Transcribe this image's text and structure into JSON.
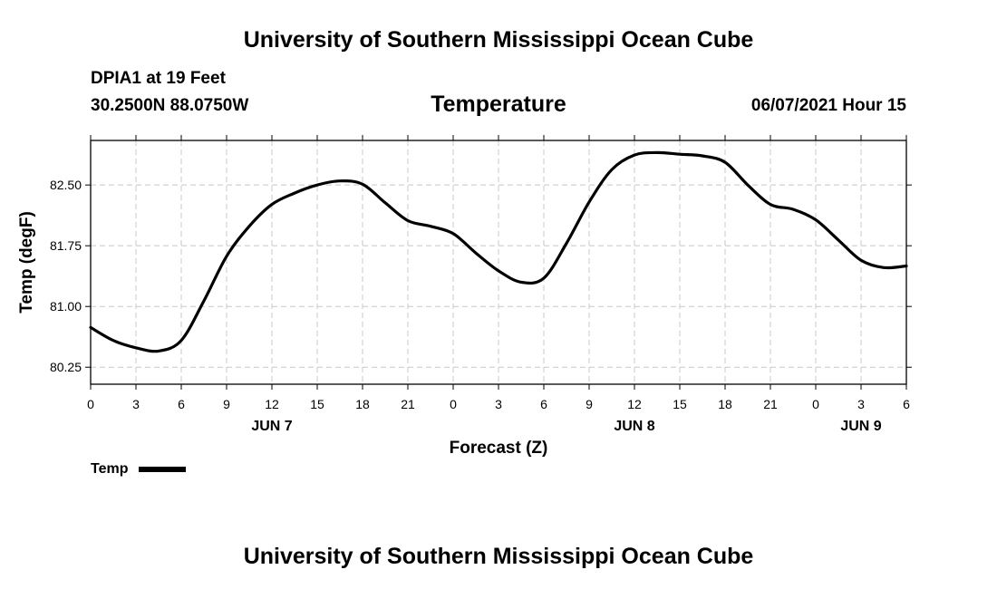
{
  "header": {
    "top_title": "University of Southern Mississippi Ocean Cube",
    "station": "DPIA1 at 19 Feet",
    "coords": "30.2500N  88.0750W",
    "variable": "Temperature",
    "datetime": "06/07/2021 Hour 15"
  },
  "footer": {
    "bottom_title": "University of Southern Mississippi Ocean Cube"
  },
  "legend": {
    "label": "Temp",
    "color": "#000000"
  },
  "chart_data": {
    "type": "line",
    "title": "Temperature",
    "ylabel": "Temp (degF)",
    "xlabel": "Forecast (Z)",
    "ylim": [
      80.04,
      83.05
    ],
    "xlim": [
      0,
      54
    ],
    "grid": true,
    "line_color": "#000000",
    "y_ticks": [
      80.25,
      81.0,
      81.75,
      82.5
    ],
    "y_tick_labels": [
      "80.25",
      "81.00",
      "81.75",
      "82.50"
    ],
    "x_ticks": [
      0,
      3,
      6,
      9,
      12,
      15,
      18,
      21,
      24,
      27,
      30,
      33,
      36,
      39,
      42,
      45,
      48,
      51,
      54
    ],
    "x_tick_labels": [
      "0",
      "3",
      "6",
      "9",
      "12",
      "15",
      "18",
      "21",
      "0",
      "3",
      "6",
      "9",
      "12",
      "15",
      "18",
      "21",
      "0",
      "3",
      "6"
    ],
    "day_labels": [
      {
        "x": 12,
        "label": "JUN 7"
      },
      {
        "x": 36,
        "label": "JUN 8"
      },
      {
        "x": 51,
        "label": "JUN 9"
      }
    ],
    "series": [
      {
        "name": "Temp",
        "x": [
          0,
          1.5,
          3,
          4.5,
          6,
          7.5,
          9,
          10.5,
          12,
          13.5,
          15,
          16.5,
          18,
          19.5,
          21,
          22.5,
          24,
          25.5,
          27,
          28.5,
          30,
          31.5,
          33,
          34.5,
          36,
          37.5,
          39,
          40.5,
          42,
          43.5,
          45,
          46.5,
          48,
          49.5,
          51,
          52.5,
          54
        ],
        "y": [
          80.74,
          80.58,
          80.49,
          80.45,
          80.58,
          81.07,
          81.62,
          81.99,
          82.26,
          82.4,
          82.5,
          82.55,
          82.51,
          82.28,
          82.06,
          81.99,
          81.9,
          81.66,
          81.44,
          81.3,
          81.35,
          81.78,
          82.29,
          82.69,
          82.87,
          82.9,
          82.88,
          82.86,
          82.78,
          82.5,
          82.26,
          82.2,
          82.07,
          81.82,
          81.57,
          81.48,
          81.5
        ]
      }
    ]
  }
}
